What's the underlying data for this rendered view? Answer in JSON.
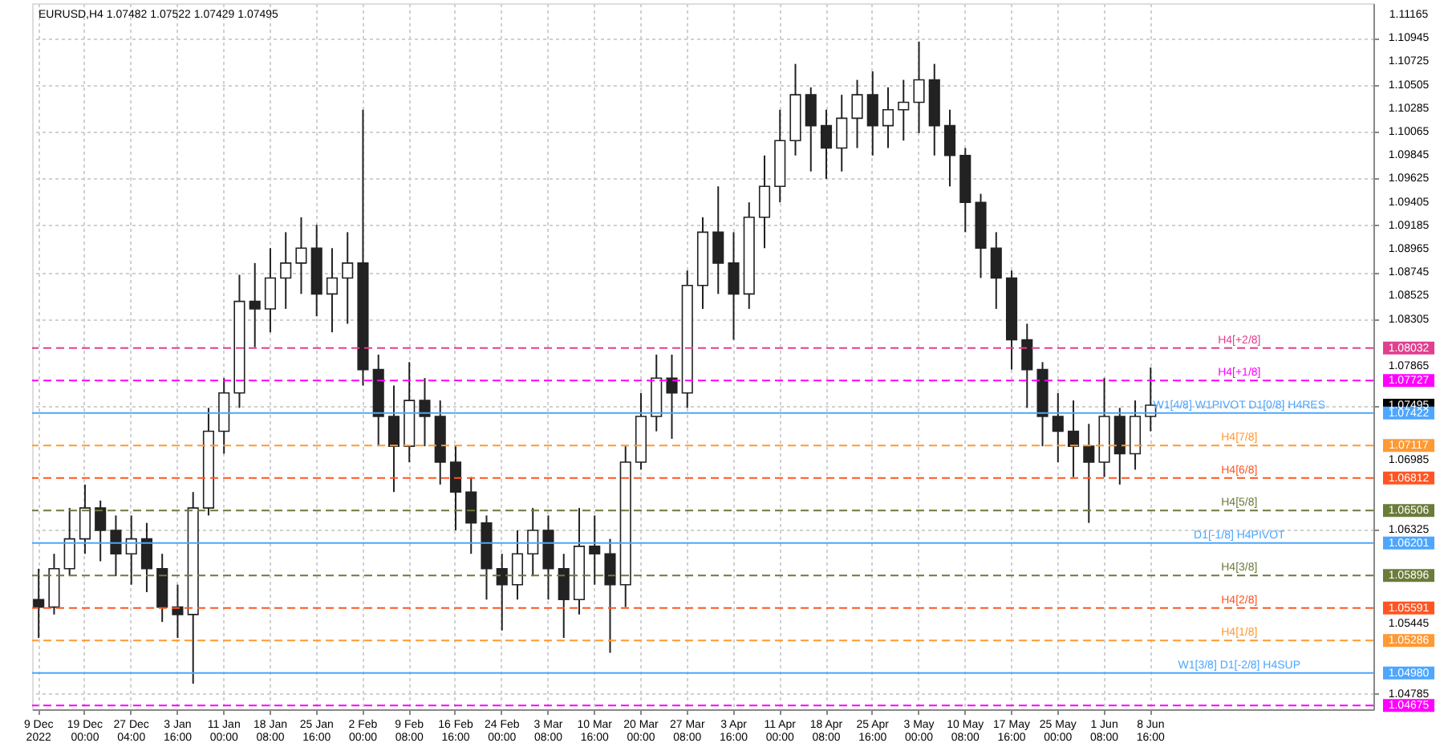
{
  "chart_data": {
    "type": "candlestick",
    "title": "EURUSD,H4  1.07482 1.07522 1.07429 1.07495",
    "categories": [
      "9 Dec 2022",
      null,
      null,
      "19 Dec 00:00",
      null,
      null,
      "27 Dec 04:00",
      null,
      null,
      "3 Jan 16:00",
      null,
      null,
      "11 Jan 00:00",
      null,
      null,
      "18 Jan 08:00",
      null,
      null,
      "25 Jan 16:00",
      null,
      null,
      "2 Feb 00:00",
      null,
      null,
      "9 Feb 08:00",
      null,
      null,
      "16 Feb 16:00",
      null,
      null,
      "24 Feb 00:00",
      null,
      null,
      "3 Mar 08:00",
      null,
      null,
      "10 Mar 16:00",
      null,
      null,
      "20 Mar 00:00",
      null,
      null,
      "27 Mar 08:00",
      null,
      null,
      "3 Apr 16:00",
      null,
      null,
      "11 Apr 00:00",
      null,
      null,
      "18 Apr 08:00",
      null,
      null,
      "25 Apr 16:00",
      null,
      null,
      "3 May 00:00",
      null,
      null,
      "10 May 08:00",
      null,
      null,
      "17 May 16:00",
      null,
      null,
      "25 May 00:00",
      null,
      null,
      "1 Jun 08:00",
      null,
      null,
      "8 Jun 16:00",
      null,
      null,
      null,
      null,
      null,
      null,
      null,
      null,
      null,
      null,
      null,
      null,
      null,
      null
    ],
    "ohlc": [
      [
        1.0567,
        1.0596,
        1.0531,
        1.056
      ],
      [
        1.056,
        1.061,
        1.0553,
        1.0596
      ],
      [
        1.0596,
        1.0653,
        1.0589,
        1.0624
      ],
      [
        1.0624,
        1.0675,
        1.061,
        1.0653
      ],
      [
        1.0653,
        1.066,
        1.0603,
        1.0632
      ],
      [
        1.0632,
        1.0646,
        1.0589,
        1.061
      ],
      [
        1.061,
        1.0646,
        1.0581,
        1.0624
      ],
      [
        1.0624,
        1.0639,
        1.0574,
        1.0596
      ],
      [
        1.0596,
        1.061,
        1.0546,
        1.056
      ],
      [
        1.056,
        1.0581,
        1.0531,
        1.0553
      ],
      [
        1.0553,
        1.0668,
        1.0488,
        1.0653
      ],
      [
        1.0653,
        1.0747,
        1.0646,
        1.0725
      ],
      [
        1.0725,
        1.0775,
        1.0704,
        1.0761
      ],
      [
        1.0761,
        1.0872,
        1.0747,
        1.0847
      ],
      [
        1.0847,
        1.0883,
        1.0804,
        1.084
      ],
      [
        1.084,
        1.0897,
        1.0818,
        1.0869
      ],
      [
        1.0869,
        1.0912,
        1.084,
        1.0883
      ],
      [
        1.0883,
        1.0926,
        1.0854,
        1.0897
      ],
      [
        1.0897,
        1.0919,
        1.0833,
        1.0854
      ],
      [
        1.0854,
        1.0897,
        1.0818,
        1.0869
      ],
      [
        1.0869,
        1.0912,
        1.0826,
        1.0883
      ],
      [
        1.0883,
        1.1027,
        1.0768,
        1.0783
      ],
      [
        1.0783,
        1.0797,
        1.0711,
        1.0739
      ],
      [
        1.0739,
        1.0768,
        1.0668,
        1.0711
      ],
      [
        1.0711,
        1.079,
        1.0696,
        1.0754
      ],
      [
        1.0754,
        1.0775,
        1.0711,
        1.0739
      ],
      [
        1.0739,
        1.0754,
        1.0675,
        1.0696
      ],
      [
        1.0696,
        1.0711,
        1.0632,
        1.0668
      ],
      [
        1.0668,
        1.0682,
        1.061,
        1.0639
      ],
      [
        1.0639,
        1.0646,
        1.0567,
        1.0596
      ],
      [
        1.0596,
        1.061,
        1.0538,
        1.0581
      ],
      [
        1.0581,
        1.0632,
        1.0567,
        1.061
      ],
      [
        1.061,
        1.0653,
        1.0589,
        1.0632
      ],
      [
        1.0632,
        1.0646,
        1.0567,
        1.0596
      ],
      [
        1.0596,
        1.061,
        1.0531,
        1.0567
      ],
      [
        1.0567,
        1.0653,
        1.0553,
        1.0617
      ],
      [
        1.0617,
        1.0646,
        1.0581,
        1.061
      ],
      [
        1.061,
        1.0624,
        1.0517,
        1.0581
      ],
      [
        1.0581,
        1.0711,
        1.056,
        1.0696
      ],
      [
        1.0696,
        1.0761,
        1.0689,
        1.0739
      ],
      [
        1.0739,
        1.0797,
        1.0725,
        1.0775
      ],
      [
        1.0775,
        1.0797,
        1.0718,
        1.0761
      ],
      [
        1.0761,
        1.0876,
        1.0747,
        1.0862
      ],
      [
        1.0862,
        1.0926,
        1.084,
        1.0912
      ],
      [
        1.0912,
        1.0955,
        1.0854,
        1.0883
      ],
      [
        1.0883,
        1.0912,
        1.0811,
        1.0854
      ],
      [
        1.0854,
        1.094,
        1.084,
        1.0926
      ],
      [
        1.0926,
        1.0984,
        1.0897,
        1.0955
      ],
      [
        1.0955,
        1.1027,
        1.094,
        1.0998
      ],
      [
        1.0998,
        1.107,
        1.0984,
        1.1041
      ],
      [
        1.1041,
        1.1048,
        1.0969,
        1.1012
      ],
      [
        1.1012,
        1.1027,
        1.0962,
        1.0991
      ],
      [
        1.0991,
        1.1041,
        1.0969,
        1.1019
      ],
      [
        1.1019,
        1.1055,
        1.0991,
        1.1041
      ],
      [
        1.1041,
        1.1063,
        1.0984,
        1.1012
      ],
      [
        1.1012,
        1.1048,
        1.0991,
        1.1027
      ],
      [
        1.1027,
        1.1055,
        1.0998,
        1.1034
      ],
      [
        1.1034,
        1.1091,
        1.1005,
        1.1055
      ],
      [
        1.1055,
        1.107,
        1.0984,
        1.1012
      ],
      [
        1.1012,
        1.1027,
        1.0955,
        1.0984
      ],
      [
        1.0984,
        1.0991,
        1.0912,
        1.094
      ],
      [
        1.094,
        1.0948,
        1.0869,
        1.0897
      ],
      [
        1.0897,
        1.0912,
        1.084,
        1.0869
      ],
      [
        1.0869,
        1.0876,
        1.0783,
        1.0811
      ],
      [
        1.0811,
        1.0826,
        1.0747,
        1.0783
      ],
      [
        1.0783,
        1.079,
        1.0711,
        1.0739
      ],
      [
        1.0739,
        1.0761,
        1.0696,
        1.0725
      ],
      [
        1.0725,
        1.0754,
        1.0682,
        1.0711
      ],
      [
        1.0711,
        1.0732,
        1.0639,
        1.0696
      ],
      [
        1.0696,
        1.0775,
        1.0682,
        1.0739
      ],
      [
        1.0739,
        1.0747,
        1.0675,
        1.0704
      ],
      [
        1.0704,
        1.0754,
        1.0689,
        1.0739
      ],
      [
        1.0739,
        1.0785,
        1.0725,
        1.07495
      ],
      null,
      null,
      null,
      null,
      null,
      null,
      null,
      null,
      null,
      null,
      null,
      null,
      null,
      null
    ],
    "ylim": [
      1.0464,
      1.1127
    ],
    "yticks": [
      1.11165,
      1.10945,
      1.10725,
      1.10505,
      1.10285,
      1.10065,
      1.09845,
      1.09625,
      1.09405,
      1.09185,
      1.08965,
      1.08745,
      1.08525,
      1.08305,
      1.07865,
      {
        "value": 1.07495,
        "label": "1.07495"
      },
      1.06985,
      1.06325,
      1.05445,
      1.04785
    ],
    "grid": true,
    "ref_lines": [
      {
        "axis": "y",
        "value": 1.08032,
        "label": "1.08032",
        "color": "#e0408f",
        "line_style": "dashed"
      },
      {
        "axis": "y",
        "value": 1.07727,
        "label": "1.07727",
        "color": "#ff00ff",
        "line_style": "dashed"
      },
      {
        "axis": "y",
        "value": 1.07422,
        "label": "1.07422",
        "color": "#4da6ff",
        "line_style": "solid"
      },
      {
        "axis": "y",
        "value": 1.07117,
        "label": "1.07117",
        "color": "#ff9933",
        "line_style": "dashed"
      },
      {
        "axis": "y",
        "value": 1.06812,
        "label": "1.06812",
        "color": "#ff5522",
        "line_style": "dashed"
      },
      {
        "axis": "y",
        "value": 1.06506,
        "label": "1.06506",
        "color": "#6b7b3a",
        "line_style": "dashed"
      },
      {
        "axis": "y",
        "value": 1.06201,
        "label": "1.06201",
        "color": "#4da6ff",
        "line_style": "solid"
      },
      {
        "axis": "y",
        "value": 1.05896,
        "label": "1.05896",
        "color": "#6b7b3a",
        "line_style": "dashed"
      },
      {
        "axis": "y",
        "value": 1.05591,
        "label": "1.05591",
        "color": "#ff5522",
        "line_style": "dashed"
      },
      {
        "axis": "y",
        "value": 1.05286,
        "label": "1.05286",
        "color": "#ff9933",
        "line_style": "dashed"
      },
      {
        "axis": "y",
        "value": 1.0498,
        "label": "1.04980",
        "color": "#4da6ff",
        "line_style": "solid"
      },
      {
        "axis": "y",
        "value": 1.04675,
        "label": "1.04675",
        "color": "#ff00ff",
        "line_style": "dashed"
      }
    ],
    "annotations": [
      {
        "text": "H4[+2/8]",
        "y": 1.08032
      },
      {
        "text": "H4[+1/8]",
        "y": 1.07727
      },
      {
        "text": "W1[4/8] W1PIVOT D1[0/8] H4RES",
        "y": 1.07422
      },
      {
        "text": "H4[7/8]",
        "y": 1.07117
      },
      {
        "text": "H4[6/8]",
        "y": 1.06812
      },
      {
        "text": "H4[5/8]",
        "y": 1.06506
      },
      {
        "text": "D1[-1/8] H4PIVOT",
        "y": 1.06201
      },
      {
        "text": "H4[3/8]",
        "y": 1.05896
      },
      {
        "text": "H4[2/8]",
        "y": 1.05591
      },
      {
        "text": "H4[1/8]",
        "y": 1.05286
      },
      {
        "text": "W1[3/8] D1[-2/8] H4SUP",
        "y": 1.0498
      }
    ]
  }
}
